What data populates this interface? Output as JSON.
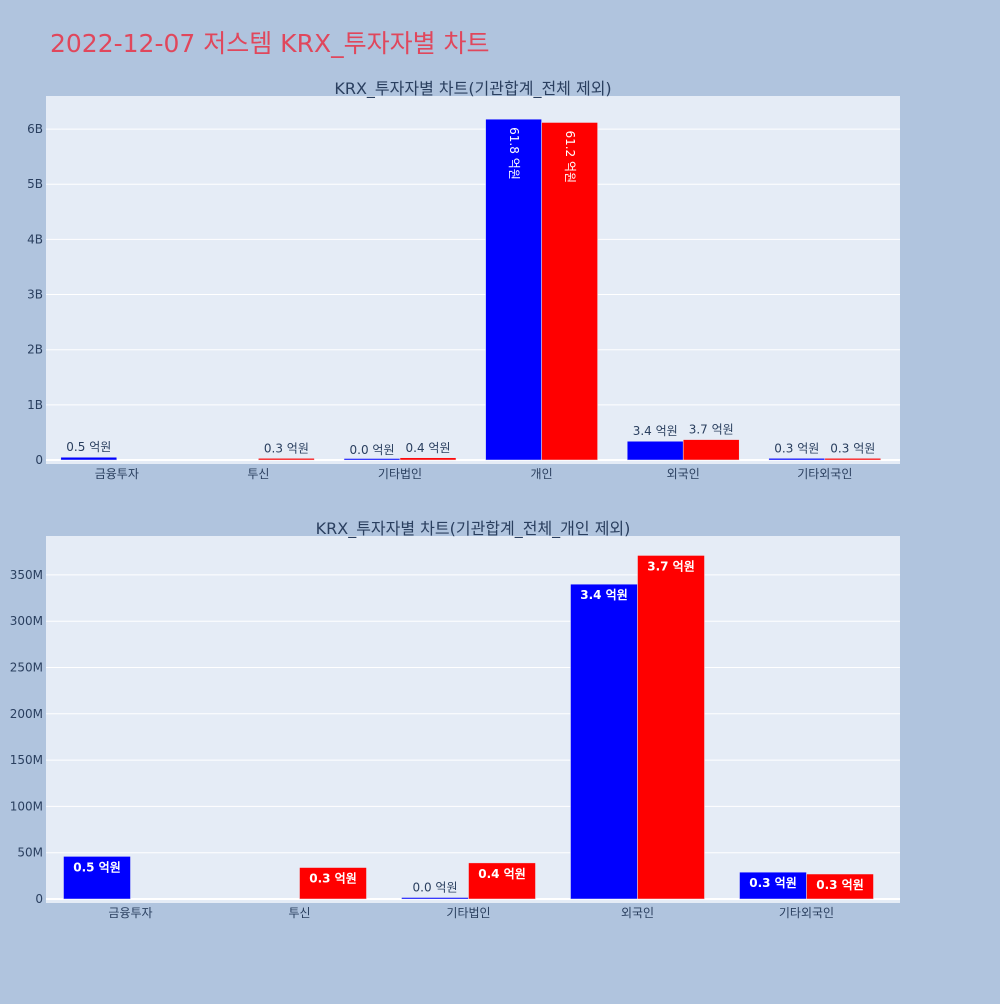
{
  "page": {
    "title": "2022-12-07 저스템 KRX_투자자별 차트"
  },
  "colors": {
    "background": "#b0c4de",
    "plot_bg": "#e5ecf6",
    "buy": "#0000ff",
    "sell": "#ff0000",
    "axis_text": "#2a3f5f",
    "title_color": "#e0475c"
  },
  "chart_data": [
    {
      "type": "bar",
      "title": "KRX_투자자별 차트(기관합계_전체 제외)",
      "xlabel": "",
      "ylabel": "",
      "categories": [
        "금융투자",
        "투신",
        "기타법인",
        "개인",
        "외국인",
        "기타외국인"
      ],
      "ylim": [
        0,
        6600000000
      ],
      "yticks": [
        0,
        1000000000,
        2000000000,
        3000000000,
        4000000000,
        5000000000,
        6000000000
      ],
      "ytick_labels": [
        "0",
        "1B",
        "2B",
        "3B",
        "4B",
        "5B",
        "6B"
      ],
      "series": [
        {
          "color": "#0000ff",
          "values": [
            50000000,
            null,
            0,
            6180000000,
            340000000,
            30000000
          ],
          "labels": [
            "0.5 억원",
            null,
            "0.0 억원",
            "61.8 억원",
            "3.4 억원",
            "0.3 억원"
          ]
        },
        {
          "color": "#ff0000",
          "values": [
            null,
            30000000,
            40000000,
            6120000000,
            370000000,
            30000000
          ],
          "labels": [
            null,
            "0.3 억원",
            "0.4 억원",
            "61.2 억원",
            "3.7 억원",
            "0.3 억원"
          ]
        }
      ],
      "label_style": "outside-small-inside-vertical",
      "grid": true,
      "legend": "none"
    },
    {
      "type": "bar",
      "title": "KRX_투자자별 차트(기관합계_전체_개인 제외)",
      "xlabel": "",
      "ylabel": "",
      "categories": [
        "금융투자",
        "투신",
        "기타법인",
        "외국인",
        "기타외국인"
      ],
      "ylim": [
        0,
        392000000
      ],
      "yticks": [
        0,
        50000000,
        100000000,
        150000000,
        200000000,
        250000000,
        300000000,
        350000000
      ],
      "ytick_labels": [
        "0",
        "50M",
        "100M",
        "150M",
        "200M",
        "250M",
        "300M",
        "350M"
      ],
      "series": [
        {
          "color": "#0000ff",
          "values": [
            46000000,
            null,
            1500000,
            340000000,
            29000000
          ],
          "labels": [
            "0.5 억원",
            null,
            "0.0 억원",
            "3.4 억원",
            "0.3 억원"
          ]
        },
        {
          "color": "#ff0000",
          "values": [
            null,
            34000000,
            39000000,
            371000000,
            27000000
          ],
          "labels": [
            null,
            "0.3 억원",
            "0.4 억원",
            "3.7 억원",
            "0.3 억원"
          ]
        }
      ],
      "label_style": "inside-bold",
      "grid": true,
      "legend": "none"
    }
  ]
}
